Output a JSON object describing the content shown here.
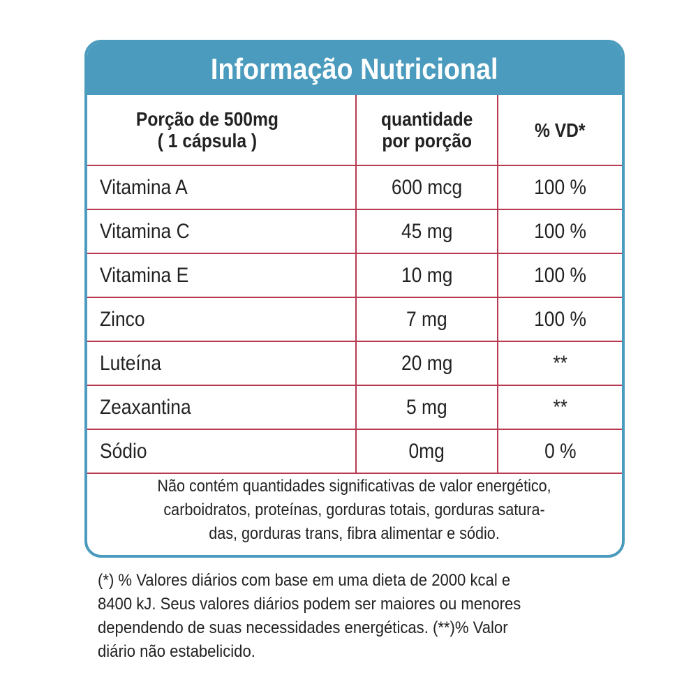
{
  "header": {
    "title": "Informação Nutricional"
  },
  "table": {
    "head": {
      "portion_line1": "Porção de 500mg",
      "portion_line2": "( 1 cápsula )",
      "qty_line1": "quantidade",
      "qty_line2": "por porção",
      "vd": "% VD*"
    },
    "rows": [
      {
        "name": "Vitamina A",
        "qty": "600 mcg",
        "vd": "100 %"
      },
      {
        "name": "Vitamina C",
        "qty": "45 mg",
        "vd": "100 %"
      },
      {
        "name": "Vitamina E",
        "qty": "10 mg",
        "vd": "100 %"
      },
      {
        "name": "Zinco",
        "qty": "7 mg",
        "vd": "100 %"
      },
      {
        "name": "Luteína",
        "qty": "20 mg",
        "vd": "**"
      },
      {
        "name": "Zeaxantina",
        "qty": "5 mg",
        "vd": "**"
      },
      {
        "name": "Sódio",
        "qty": "0mg",
        "vd": "0 %"
      }
    ]
  },
  "note": {
    "line1": "Não contém quantidades significativas de valor energético,",
    "line2": "carboidratos, proteínas, gorduras totais, gorduras satura-",
    "line3": "das, gorduras trans, fibra alimentar e sódio."
  },
  "footnote": {
    "line1": "(*) % Valores diários com base em uma dieta de 2000 kcal e",
    "line2": "8400 kJ. Seus valores diários podem ser maiores ou menores",
    "line3": "dependendo de suas necessidades energéticas. (**)% Valor",
    "line4": "diário não estabelicido."
  },
  "colors": {
    "frame": "#4a9bbd",
    "grid": "#b83a52",
    "text": "#222222"
  }
}
